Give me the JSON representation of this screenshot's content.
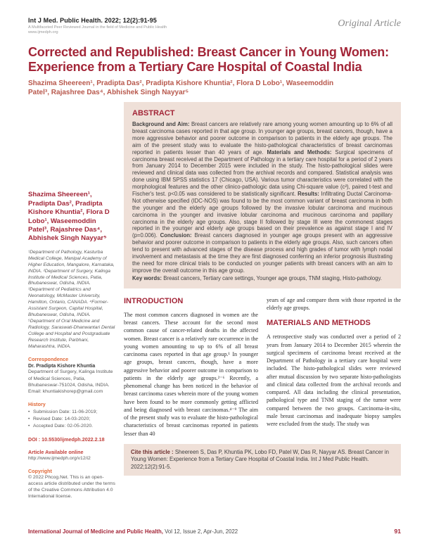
{
  "colors": {
    "accent_red": "#a32638",
    "byline_red": "#b8584c",
    "heading_orange": "#e06a3a",
    "link_red": "#c2413c",
    "box_background": "#efe0d8"
  },
  "header": {
    "journal_ref": "Int J Med. Public Health. 2022; 12(2):91-95",
    "tagline": "A Multifaceted Peer Reviewed Journal in the field of Medicine and Public Health",
    "website": "www.ijmedph.org",
    "article_type": "Original Article"
  },
  "title": "Corrected and Republished: Breast Cancer in Young Women: Experience from a Tertiary Care Hospital of Coastal India",
  "byline": "Shazima Sheereen¹, Pradipta Das², Pradipta Kishore Khuntia², Flora D Lobo¹, Waseemoddin Patel³, Rajashree Das⁴, Abhishek Singh Nayyar⁵",
  "sidebar": {
    "authors": "Shazima Sheereen¹, Pradipta Das², Pradipta Kishore Khuntia², Flora D Lobo¹, Waseemoddin Patel³, Rajashree Das⁴, Abhishek Singh Nayyar⁵",
    "affiliations": [
      "¹Department of Pathology, Kasturba Medical College, Manipal Academy of Higher Education, Mangalore, Karnataka, INDIA.",
      "²Department of Surgery, Kalinga Institute of Medical Sciences, Patia, Bhubaneswar, Odisha, INDIA.",
      "³Department of Pediatrics and Neonatology, McMaster University, Hamilton, Ontario, CANADA.",
      "⁴Former-Assistant Surgeon, Capital Hospital, Bhubaneswar, Odisha, INDIA.",
      "⁵Department of Oral Medicine and Radiology, Saraswati-Dhanwantari Dental College and Hospital and Postgraduate Research Institute, Parbhani, Maharashtra, INDIA."
    ],
    "correspondence_heading": "Correspondence",
    "correspondence_name": "Dr. Pradipta Kishore Khuntia",
    "correspondence_address": "Department of Surgery, Kalinga Institute of Medical Sciences, Patia, Bhubaneswar-751024, Odisha, INDIA.",
    "correspondence_email": "Email: khuntiakishorep@gmail.com",
    "history_heading": "History",
    "history_items": [
      "Submission Date: 11-06-2019;",
      "Revised Date: 14-03-2020;",
      "Accepted Date: 02-05-2020."
    ],
    "doi": "DOI : 10.5530/ijmedph.2022.2.18",
    "available_heading": "Article Available online",
    "available_url": "http://www.ijmedph.org/v12/i2",
    "copyright_heading": "Copyright",
    "copyright_text": "© 2022 Phcog.Net. This is an open-access article distributed under the terms of the Creative Commons Attribution 4.0 International license."
  },
  "abstract": {
    "heading": "ABSTRACT",
    "segments": [
      {
        "label": "Background and Aim: ",
        "text": "Breast cancers are relatively rare among young women amounting up to 6% of all breast carcinoma cases reported in that age group. In younger age groups, breast cancers, though, have a more aggressive behavior and poorer outcome in comparison to patients in the elderly age groups. The aim of the present study was to evaluate the histo-pathological characteristics of breast carcinomas reported in patients lesser than 40 years of age. "
      },
      {
        "label": "Materials and Methods: ",
        "text": "Surgical specimens of carcinoma breast received at the Department of Pathology in a tertiary care hospital for a period of 2 years from January 2014 to December 2015 were included in the study. The histo-pathological slides were reviewed and clinical data was collected from the archival records and compared. Statistical analysis was done using IBM SPSS statistics 17 (Chicago, USA). Various tumor characteristics were correlated with the morphological features and the other clinico-pathologic data using Chi-square value (c²), paired t-test and Fischer's test. p<0.05 was considered to be statistically significant. "
      },
      {
        "label": "Results: ",
        "text": "Infiltrating Ductal Carcinoma-Not otherwise specified (IDC-NOS) was found to be the most common variant of breast carcinoma in both the younger and the elderly age groups followed by the invasive lobular carcinoma and mucinous carcinoma in the younger and invasive lobular carcinoma and mucinous carcinoma and papillary carcinoma in the elderly age groups. Also, stage II followed by stage III were the commonest stages reported in the younger and elderly age groups based on their prevalence as against stage I and IV (p=0.006). "
      },
      {
        "label": "Conclusion: ",
        "text": "Breast cancers diagnosed in younger age groups present with an aggressive behavior and poorer outcome in comparison to patients in the elderly age groups. Also, such cancers often tend to present with advanced stages of the disease process and high grades of tumor with lymph nodal involvement and metastasis at the time they are first diagnosed conferring an inferior prognosis illustrating the need for more clinical trials to be conducted on younger patients with breast cancers with an aim to improve the overall outcome in this age group."
      }
    ],
    "keywords_label": "Key words: ",
    "keywords_text": "Breast cancers, Tertiary care settings, Younger age groups, TNM staging, Histo-pathology."
  },
  "introduction": {
    "heading": "INTRODUCTION",
    "col1_text": "The most common cancers diagnosed in women are the breast cancers. These account for the second most common cause of cancer-related deaths in the affected women. Breast cancer is a relatively rare occurrence in the young women amounting to up to 6% of all breast carcinoma cases reported in that age group.¹ In younger age groups, breast cancers, though, have a more aggressive behavior and poorer outcome in comparison to patients in the elderly age groups.²⁻⁶ Recently, a phenomenal change has been noticed in the behavior of breast carcinoma cases wherein more of the young women have been found to be more commonly getting afflicted and being diagnosed with breast carcinomas.⁴⁻⁹ The aim of the present study was to evaluate the histo-pathological characteristics of breast carcinomas reported in patients lesser than 40",
    "col2_text": "years of age and compare them with those reported in the elderly age groups."
  },
  "methods": {
    "heading": "MATERIALS AND METHODS",
    "text": "A retrospective study was conducted over a period of 2 years from January 2014 to December 2015 wherein the surgical specimens of carcinoma breast received at the Department of Pathology in a tertiary care hospital were included. The histo-pathological slides were reviewed after mutual discussion by two separate histo-pathologists and clinical data collected from the archival records and compared. All data including the clinical presentation, pathological type and TNM staging of the tumor were compared between the two groups. Carcinoma-in-situ, male breast carcinomas and inadequate biopsy samples were excluded from the study. The study was"
  },
  "cite": {
    "label": "Cite this article : ",
    "text": "Sheereen S, Das P, Khuntia PK, Lobo FD, Patel W, Das R, Nayyar AS. Breast Cancer in Young Women: Experience from a Tertiary Care Hospital of Coastal India. Int J Med Public Health. 2022;12(2):91-5."
  },
  "footer": {
    "journal_bold": "International Journal of Medicine and Public Health,",
    "journal_rest": " Vol 12, Issue 2, Apr-Jun, 2022",
    "page_number": "91"
  }
}
